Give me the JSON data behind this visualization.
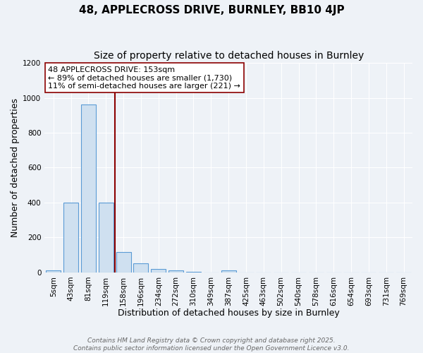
{
  "title": "48, APPLECROSS DRIVE, BURNLEY, BB10 4JP",
  "subtitle": "Size of property relative to detached houses in Burnley",
  "xlabel": "Distribution of detached houses by size in Burnley",
  "ylabel": "Number of detached properties",
  "bins": [
    "5sqm",
    "43sqm",
    "81sqm",
    "119sqm",
    "158sqm",
    "196sqm",
    "234sqm",
    "272sqm",
    "310sqm",
    "349sqm",
    "387sqm",
    "425sqm",
    "463sqm",
    "502sqm",
    "540sqm",
    "578sqm",
    "616sqm",
    "654sqm",
    "693sqm",
    "731sqm",
    "769sqm"
  ],
  "values": [
    10,
    400,
    960,
    400,
    115,
    50,
    20,
    10,
    5,
    0,
    10,
    0,
    0,
    0,
    0,
    0,
    0,
    0,
    0,
    0,
    0
  ],
  "bar_color": "#cfe0f0",
  "bar_edge_color": "#5b9bd5",
  "vline_x_index": 4,
  "vline_color": "#8b0000",
  "annotation_line1": "48 APPLECROSS DRIVE: 153sqm",
  "annotation_line2": "← 89% of detached houses are smaller (1,730)",
  "annotation_line3": "11% of semi-detached houses are larger (221) →",
  "annotation_box_color": "#ffffff",
  "annotation_box_edge": "#8b0000",
  "ylim": [
    0,
    1200
  ],
  "yticks": [
    0,
    200,
    400,
    600,
    800,
    1000,
    1200
  ],
  "footer_line1": "Contains HM Land Registry data © Crown copyright and database right 2025.",
  "footer_line2": "Contains public sector information licensed under the Open Government Licence v3.0.",
  "bg_color": "#eef2f7",
  "grid_color": "#ffffff",
  "title_fontsize": 11,
  "subtitle_fontsize": 10,
  "label_fontsize": 9,
  "tick_fontsize": 7.5,
  "annotation_fontsize": 8,
  "footer_fontsize": 6.5
}
